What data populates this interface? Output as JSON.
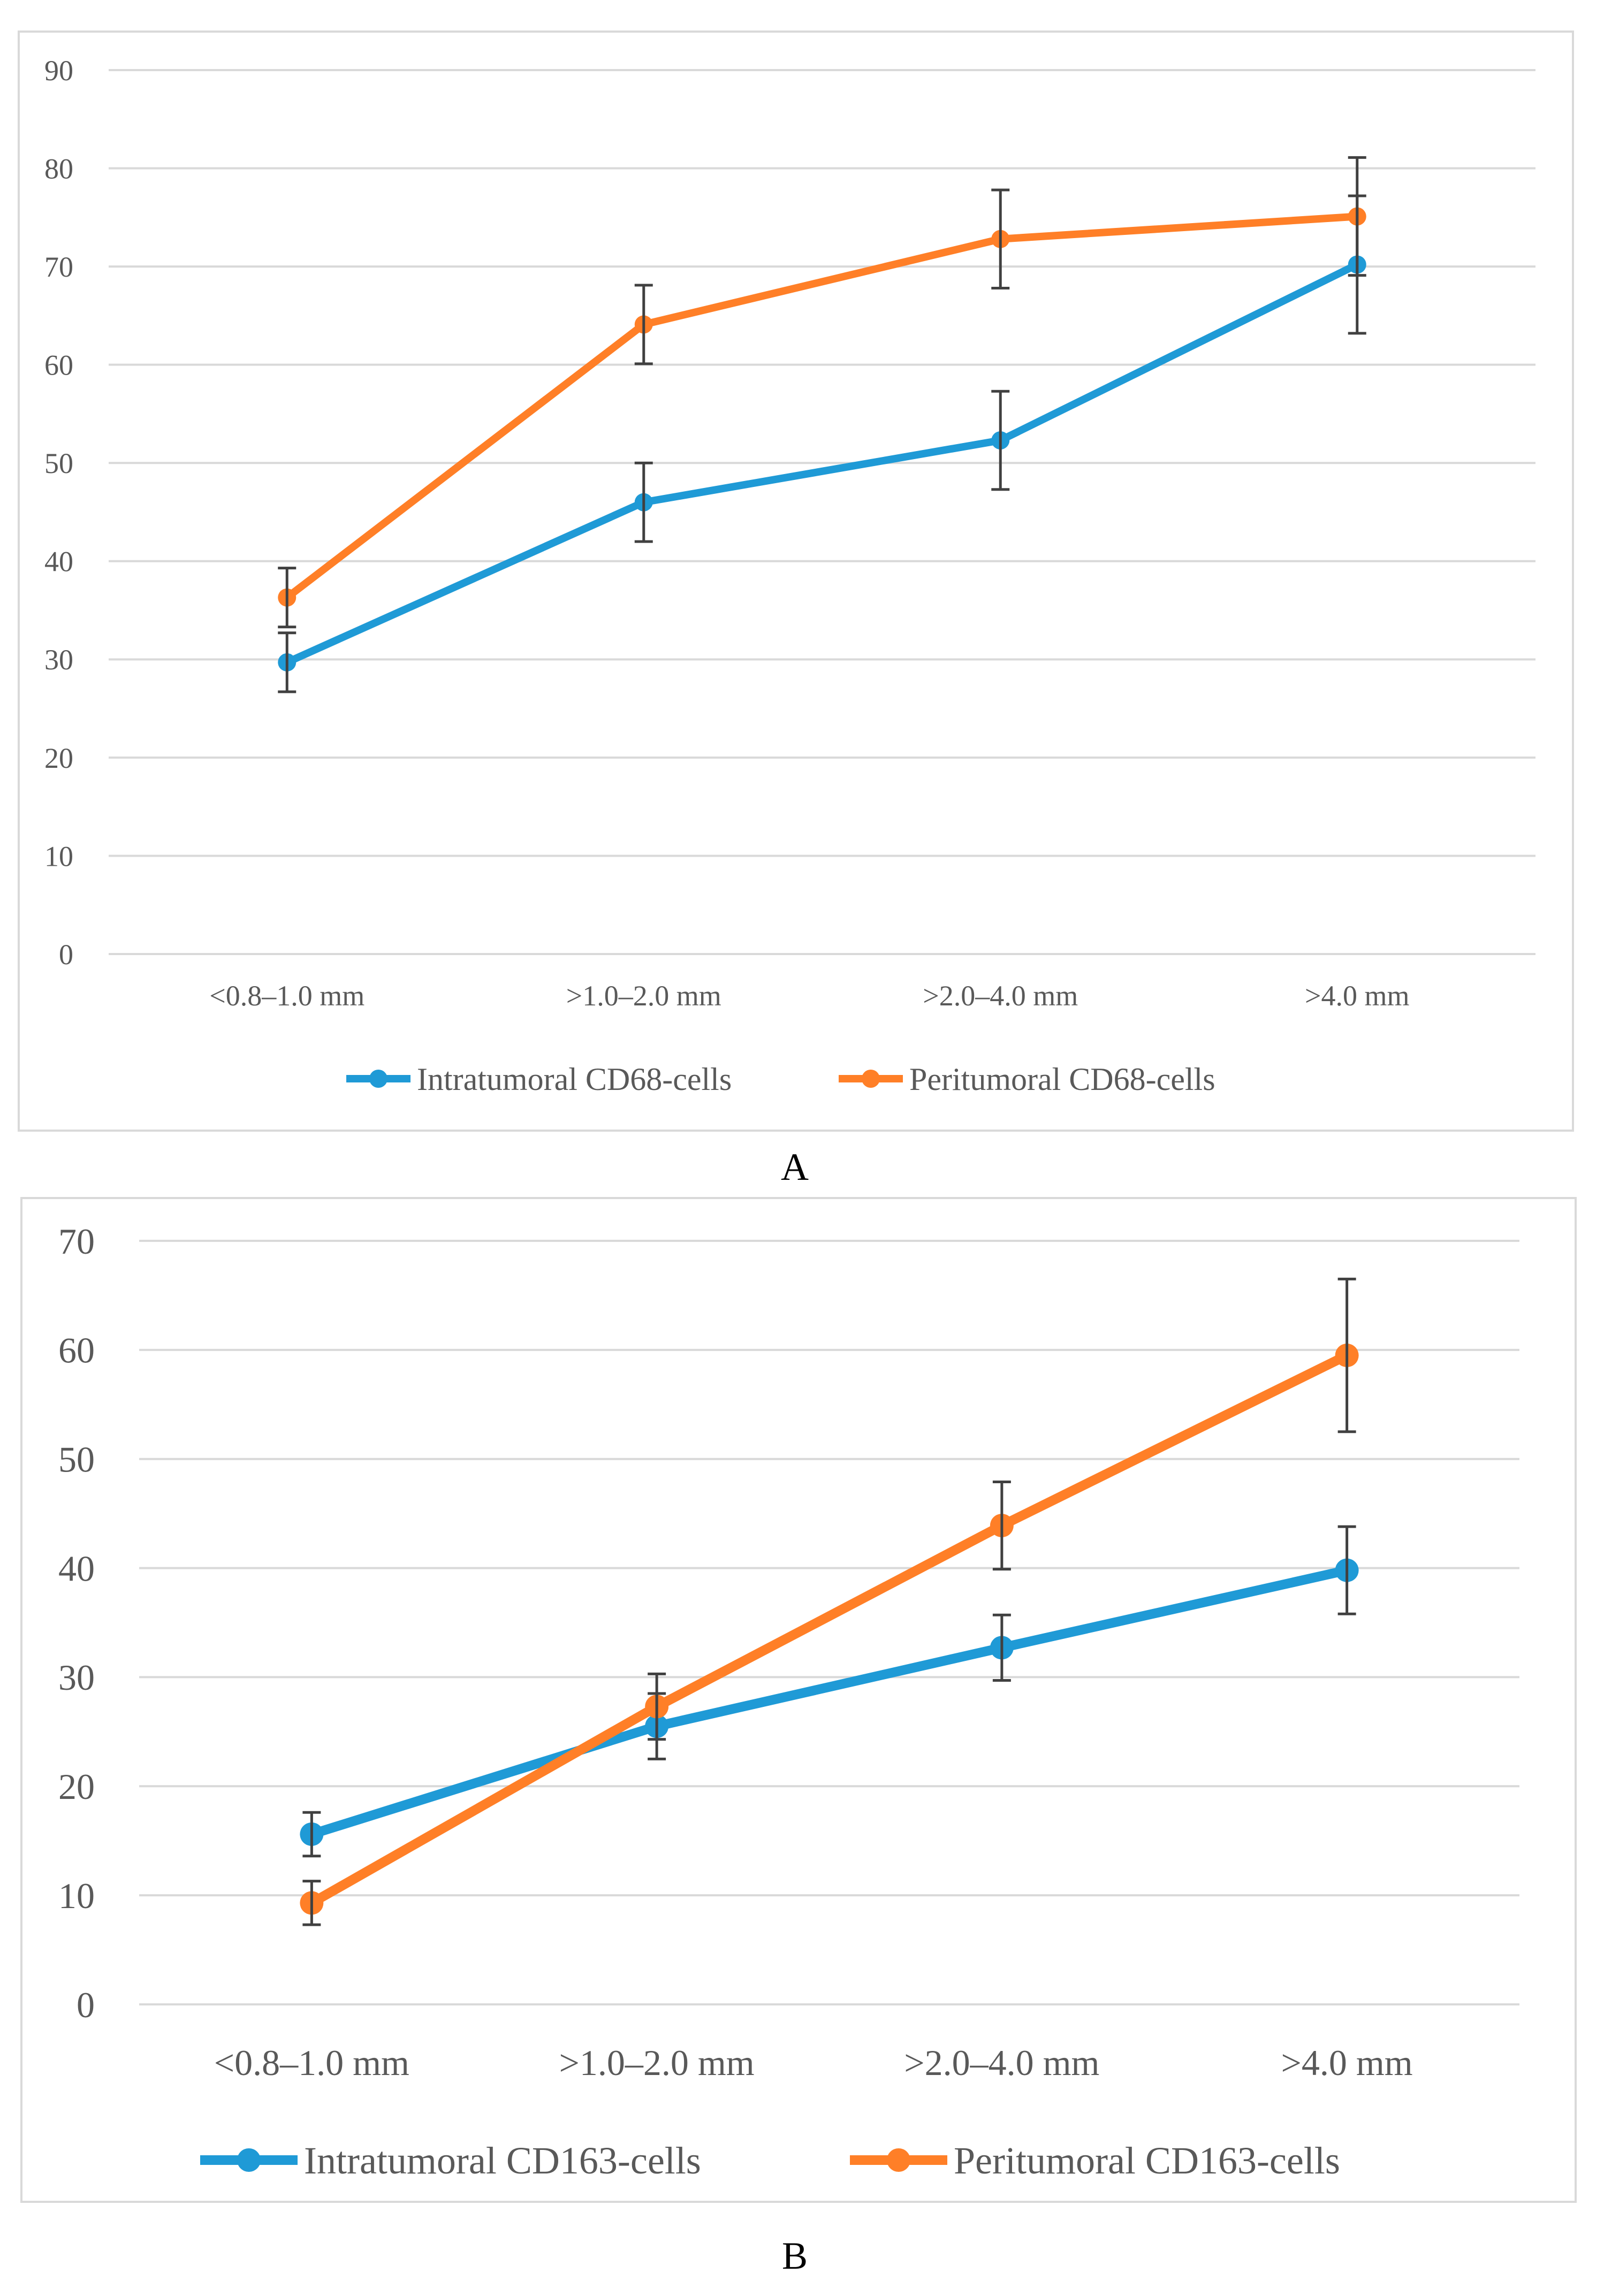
{
  "chart_data": [
    {
      "type": "line",
      "panel_label": "A",
      "title": "",
      "xlabel": "",
      "ylabel": "",
      "categories": [
        "<0.8–1.0 mm",
        ">1.0–2.0 mm",
        ">2.0–4.0 mm",
        ">4.0 mm"
      ],
      "ylim": [
        0,
        90
      ],
      "yticks": [
        0,
        10,
        20,
        30,
        40,
        50,
        60,
        70,
        80,
        90
      ],
      "grid": true,
      "legend_position": "bottom",
      "series": [
        {
          "name": "Intratumoral CD68-cells",
          "color": "#1f9ad6",
          "values": [
            29.7,
            46.0,
            52.3,
            70.2
          ],
          "err_low": [
            26.7,
            42.0,
            47.3,
            63.2
          ],
          "err_high": [
            32.7,
            50.0,
            57.3,
            77.2
          ]
        },
        {
          "name": "Peritumoral CD68-cells",
          "color": "#ff7f27",
          "values": [
            36.3,
            64.1,
            72.8,
            75.1
          ],
          "err_low": [
            33.3,
            60.1,
            67.8,
            69.1
          ],
          "err_high": [
            39.3,
            68.1,
            77.8,
            81.1
          ]
        }
      ]
    },
    {
      "type": "line",
      "panel_label": "B",
      "title": "",
      "xlabel": "",
      "ylabel": "",
      "categories": [
        "<0.8–1.0 mm",
        ">1.0–2.0 mm",
        ">2.0–4.0 mm",
        ">4.0 mm"
      ],
      "ylim": [
        0,
        70
      ],
      "yticks": [
        0,
        10,
        20,
        30,
        40,
        50,
        60,
        70
      ],
      "grid": true,
      "legend_position": "bottom",
      "series": [
        {
          "name": "Intratumoral CD163-cells",
          "color": "#1f9ad6",
          "values": [
            15.6,
            25.5,
            32.7,
            39.8
          ],
          "err_low": [
            13.6,
            22.5,
            29.7,
            35.8
          ],
          "err_high": [
            17.6,
            28.5,
            35.7,
            43.8
          ]
        },
        {
          "name": "Peritumoral CD163-cells",
          "color": "#ff7f27",
          "values": [
            9.3,
            27.3,
            43.9,
            59.5
          ],
          "err_low": [
            7.3,
            24.3,
            39.9,
            52.5
          ],
          "err_high": [
            11.3,
            30.3,
            47.9,
            66.5
          ]
        }
      ]
    }
  ]
}
